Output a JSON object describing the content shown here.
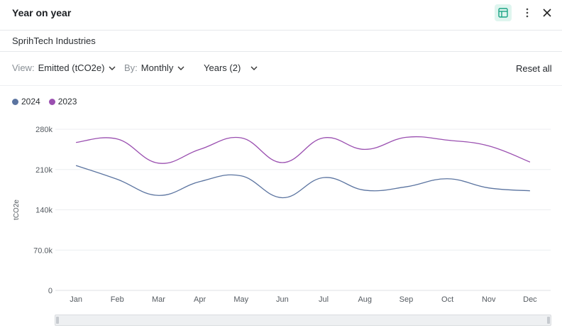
{
  "header": {
    "title": "Year on year",
    "icons": {
      "table": "table-icon",
      "more": "kebab-icon",
      "close": "close-icon"
    }
  },
  "company": "SprihTech Industries",
  "filters": {
    "view_label": "View:",
    "view_value": "Emitted (tCO2e)",
    "by_label": "By:",
    "by_value": "Monthly",
    "years_value": "Years (2)",
    "reset_label": "Reset all"
  },
  "colors": {
    "accent": "#1aa384",
    "series_2024": "#5b74a0",
    "series_2023": "#9a4fb0",
    "grid": "#eceef0"
  },
  "chart_data": {
    "type": "line",
    "categories": [
      "Jan",
      "Feb",
      "Mar",
      "Apr",
      "May",
      "Jun",
      "Jul",
      "Aug",
      "Sep",
      "Oct",
      "Nov",
      "Dec"
    ],
    "series": [
      {
        "name": "2024",
        "color": "#5b74a0",
        "values": [
          217000,
          193000,
          165000,
          189000,
          199000,
          161000,
          196000,
          174000,
          180000,
          194000,
          178000,
          173000
        ]
      },
      {
        "name": "2023",
        "color": "#9a4fb0",
        "values": [
          257000,
          263000,
          221000,
          245000,
          265000,
          222000,
          265000,
          245000,
          266000,
          261000,
          251000,
          223000
        ]
      }
    ],
    "ylabel": "tCO2e",
    "ylim": [
      0,
      280000
    ],
    "y_ticks": [
      {
        "value": 0,
        "label": "0"
      },
      {
        "value": 70000,
        "label": "70.0k"
      },
      {
        "value": 140000,
        "label": "140k"
      },
      {
        "value": 210000,
        "label": "210k"
      },
      {
        "value": 280000,
        "label": "280k"
      }
    ],
    "grid": true,
    "legend_position": "top-left"
  }
}
